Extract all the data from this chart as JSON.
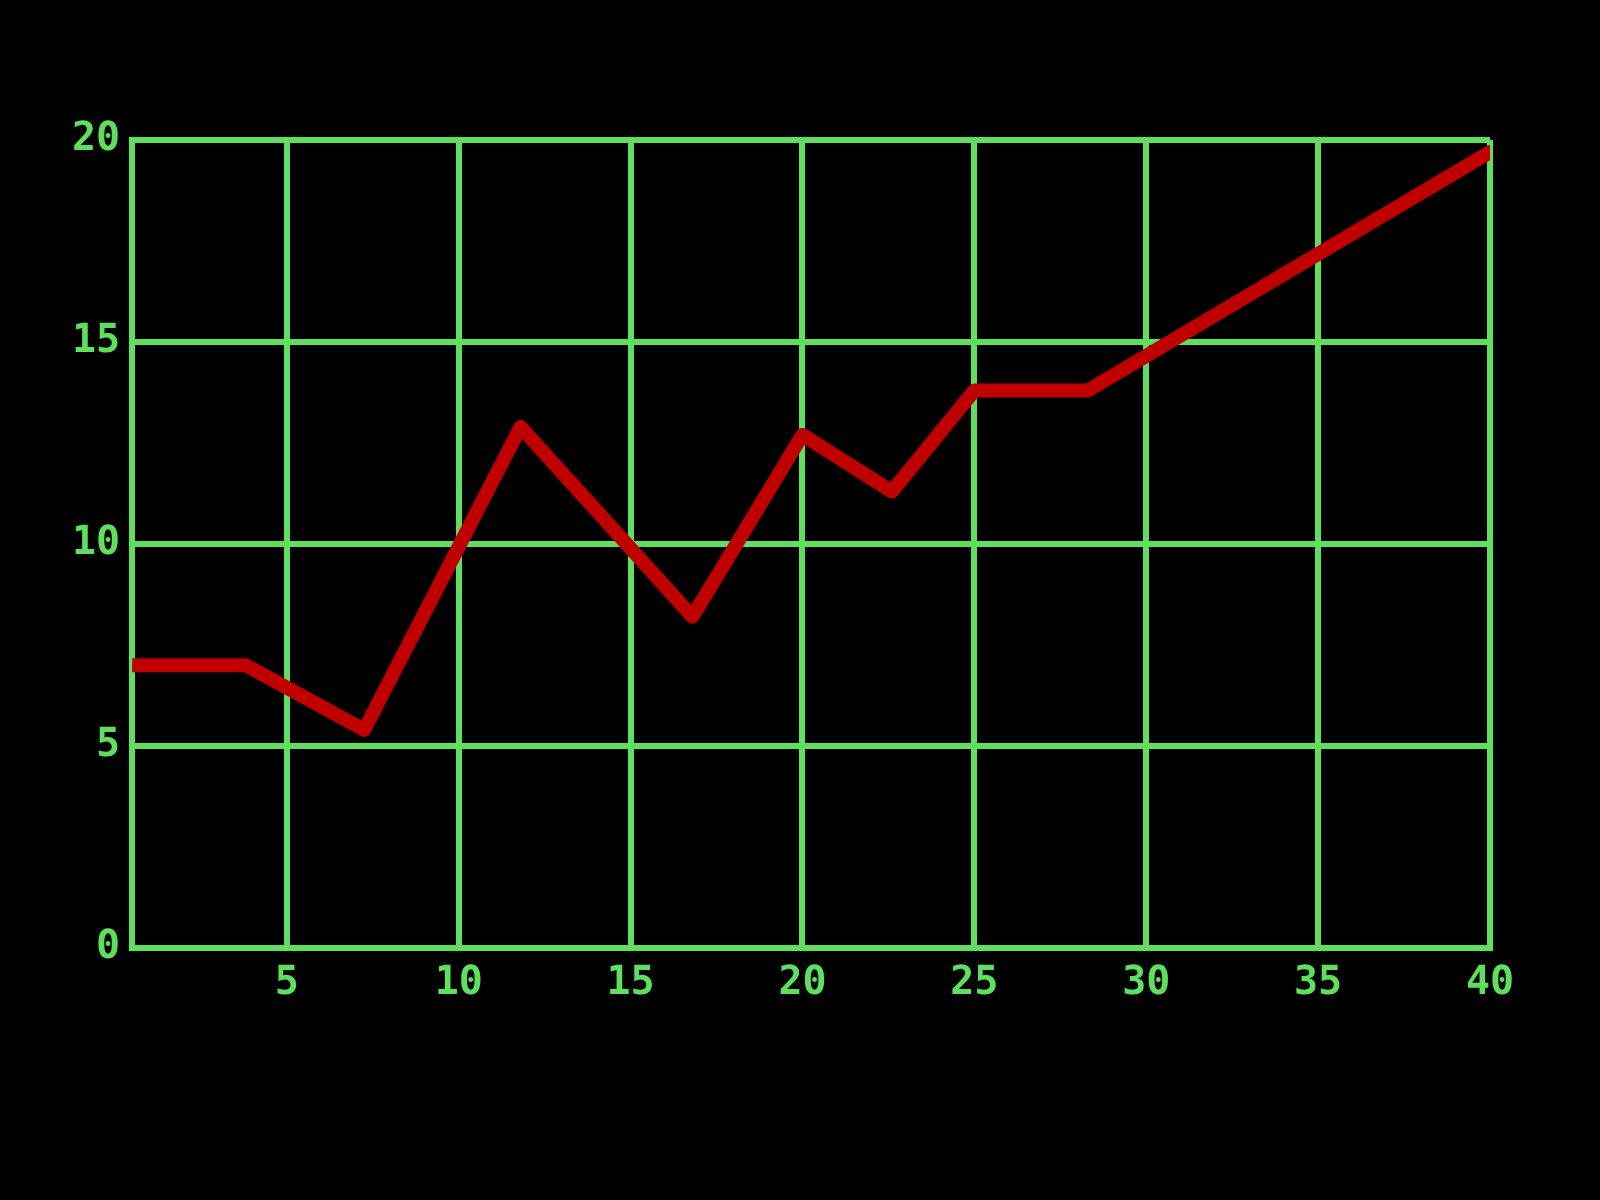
{
  "chart_data": {
    "type": "line",
    "x": [
      0.5,
      3.8,
      7.25,
      11.8,
      16.8,
      20,
      22.6,
      25,
      28.3,
      40
    ],
    "series": [
      {
        "color": "#c00000",
        "values": [
          7,
          7,
          5.4,
          12.9,
          8.2,
          12.7,
          11.3,
          13.8,
          13.8,
          19.7
        ]
      }
    ],
    "xlim": [
      0.5,
      40
    ],
    "xticks": [
      5,
      10,
      15,
      20,
      25,
      30,
      35,
      40
    ],
    "ylim": [
      0,
      20
    ],
    "yticks": [
      0,
      5,
      10,
      15,
      20
    ],
    "grid": true,
    "legend": false,
    "marker": "none",
    "line_style": "solid"
  }
}
